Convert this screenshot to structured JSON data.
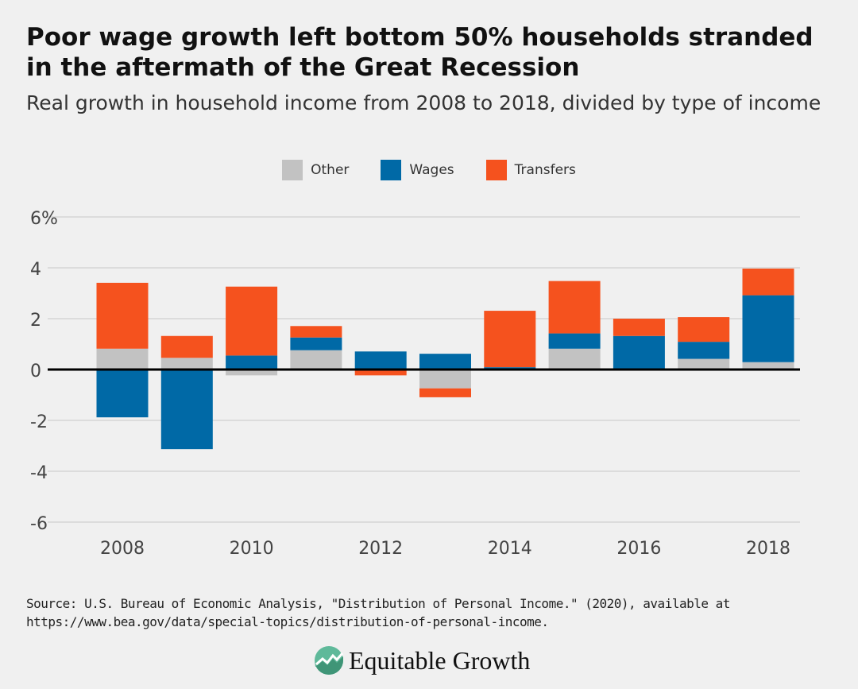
{
  "header": {
    "title": "Poor wage growth left bottom 50% households stranded in the aftermath of the Great Recession",
    "subtitle": "Real growth in household income from 2008 to 2018, divided by type of income"
  },
  "chart_data": {
    "type": "stacked-bar",
    "categories": [
      2008,
      2009,
      2010,
      2011,
      2012,
      2013,
      2014,
      2015,
      2016,
      2017,
      2018
    ],
    "x_tick_labels": [
      "2008",
      "2010",
      "2012",
      "2014",
      "2016",
      "2018"
    ],
    "y_ticks": [
      6,
      4,
      2,
      0,
      -2,
      -4,
      -6
    ],
    "y_tick_labels": [
      "6%",
      "4",
      "2",
      "0",
      "-2",
      "-4",
      "-6"
    ],
    "ylim": [
      -6,
      6
    ],
    "grid": true,
    "legend_position": "top",
    "series": [
      {
        "name": "Other",
        "color": "#c2c2c2",
        "values": [
          0.82,
          0.46,
          -0.23,
          0.76,
          0.0,
          -0.74,
          0.0,
          0.82,
          0.0,
          0.42,
          0.29
        ]
      },
      {
        "name": "Wages",
        "color": "#0069a6",
        "values": [
          -1.88,
          -3.13,
          0.55,
          0.5,
          0.71,
          0.62,
          0.09,
          0.6,
          1.32,
          0.67,
          2.63
        ]
      },
      {
        "name": "Transfers",
        "color": "#f5521e",
        "values": [
          2.59,
          0.86,
          2.71,
          0.45,
          -0.23,
          -0.35,
          2.22,
          2.06,
          0.68,
          0.97,
          1.05
        ]
      }
    ]
  },
  "footer": {
    "source_line1": "Source: U.S. Bureau of Economic Analysis, \"Distribution of Personal Income.\" (2020), available at",
    "source_line2": "https://www.bea.gov/data/special-topics/distribution-of-personal-income.",
    "logo_text": "Equitable Growth"
  }
}
